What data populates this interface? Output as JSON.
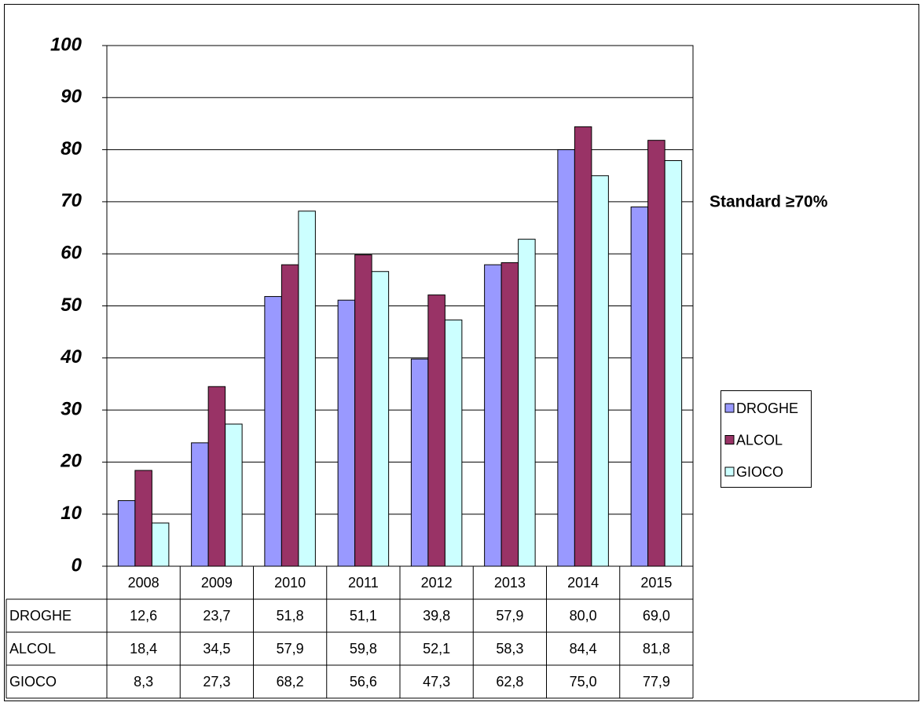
{
  "chart_data": {
    "type": "bar",
    "annotation": "Standard ≥70%",
    "categories": [
      "2008",
      "2009",
      "2010",
      "2011",
      "2012",
      "2013",
      "2014",
      "2015"
    ],
    "series": [
      {
        "name": "DROGHE",
        "color": "#9999ff",
        "values": [
          12.6,
          23.7,
          51.8,
          51.1,
          39.8,
          57.9,
          80.0,
          69.0
        ],
        "value_labels": [
          "12,6",
          "23,7",
          "51,8",
          "51,1",
          "39,8",
          "57,9",
          "80,0",
          "69,0"
        ]
      },
      {
        "name": "ALCOL",
        "color": "#993366",
        "values": [
          18.4,
          34.5,
          57.9,
          59.8,
          52.1,
          58.3,
          84.4,
          81.8
        ],
        "value_labels": [
          "18,4",
          "34,5",
          "57,9",
          "59,8",
          "52,1",
          "58,3",
          "84,4",
          "81,8"
        ]
      },
      {
        "name": "GIOCO",
        "color": "#ccffff",
        "values": [
          8.3,
          27.3,
          68.2,
          56.6,
          47.3,
          62.8,
          75.0,
          77.9
        ],
        "value_labels": [
          "8,3",
          "27,3",
          "68,2",
          "56,6",
          "47,3",
          "62,8",
          "75,0",
          "77,9"
        ]
      }
    ],
    "ylim": [
      0,
      100
    ],
    "yticks": [
      0,
      10,
      20,
      30,
      40,
      50,
      60,
      70,
      80,
      90,
      100
    ],
    "grid": true
  }
}
